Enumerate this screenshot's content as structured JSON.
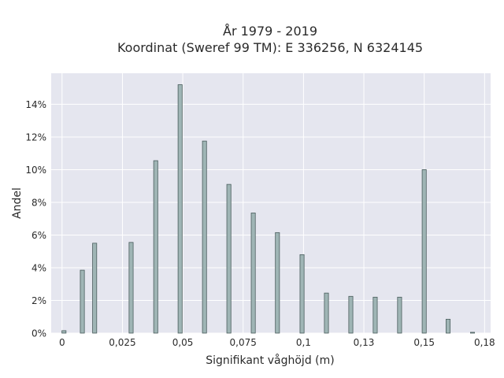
{
  "chart_data": {
    "type": "bar",
    "title_line1": "År 1979 - 2019",
    "title_line2": "Koordinat (Sweref 99 TM): E 336256, N 6324145",
    "xlabel": "Signifikant våghöjd (m)",
    "ylabel": "Andel",
    "x_ticks": [
      "0",
      "0,025",
      "0,05",
      "0,075",
      "0,1",
      "0,13",
      "0,15",
      "0,18"
    ],
    "x_tick_values": [
      0,
      0.025,
      0.05,
      0.075,
      0.1,
      0.125,
      0.15,
      0.175
    ],
    "y_ticks": [
      "0%",
      "2%",
      "4%",
      "6%",
      "8%",
      "10%",
      "12%",
      "14%"
    ],
    "y_tick_values": [
      0,
      2,
      4,
      6,
      8,
      10,
      12,
      14
    ],
    "xlim": [
      -0.0045,
      0.1775
    ],
    "ylim": [
      0,
      15.9
    ],
    "bin_width": 0.0017,
    "x": [
      0.0008,
      0.0084,
      0.0135,
      0.0286,
      0.0388,
      0.0489,
      0.059,
      0.0691,
      0.0792,
      0.0892,
      0.0994,
      0.1095,
      0.1196,
      0.1297,
      0.1398,
      0.15,
      0.1599,
      0.17
    ],
    "values": [
      0.15,
      3.85,
      5.5,
      5.55,
      10.55,
      15.2,
      11.75,
      9.1,
      7.35,
      6.15,
      4.8,
      2.45,
      2.25,
      2.2,
      2.2,
      10.0,
      0.85,
      0.05
    ],
    "grid": true,
    "colors": {
      "bar_fill": "#9fb5b5",
      "bar_stroke": "#4a5d5d",
      "plot_bg": "#e5e6ef",
      "grid": "#ffffff"
    }
  }
}
